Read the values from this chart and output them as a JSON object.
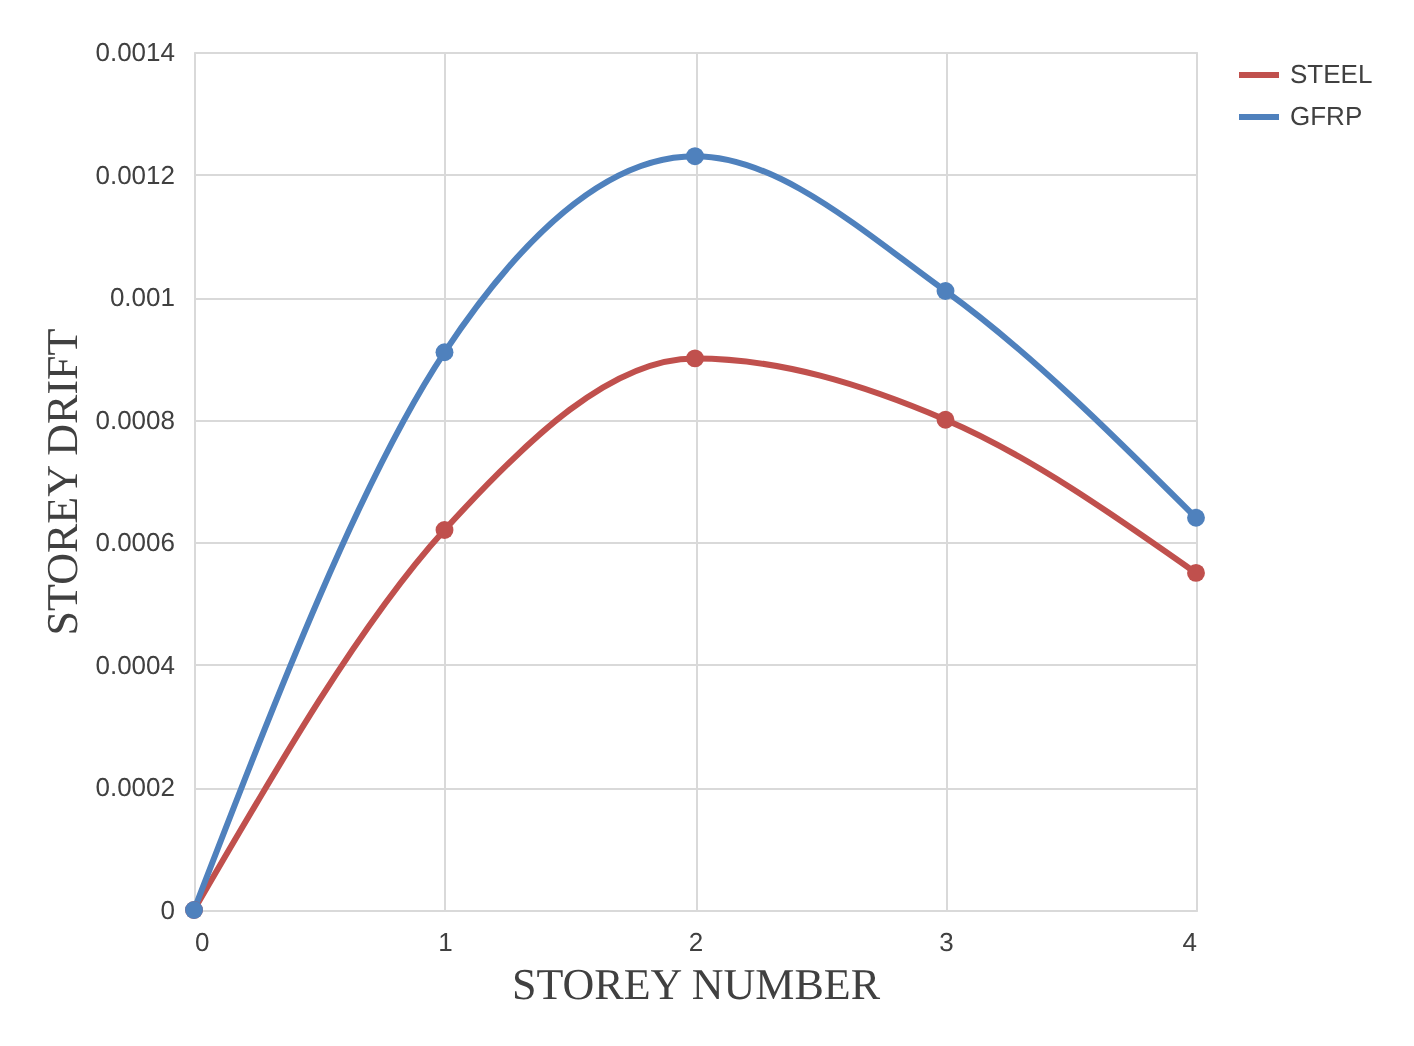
{
  "chart_data": {
    "type": "line",
    "xlabel": "STOREY NUMBER",
    "ylabel": "STOREY DRIFT",
    "x": [
      0,
      1,
      2,
      3,
      4
    ],
    "series": [
      {
        "name": "STEEL",
        "color": "#c0504d",
        "values": [
          0,
          0.00062,
          0.0009,
          0.0008,
          0.00055
        ]
      },
      {
        "name": "GFRP",
        "color": "#4f81bd",
        "values": [
          0,
          0.00091,
          0.00123,
          0.00101,
          0.00064
        ]
      }
    ],
    "xlim": [
      0,
      4
    ],
    "xticks": [
      0,
      1,
      2,
      3,
      4
    ],
    "ylim": [
      0,
      0.0014
    ],
    "yticks": [
      0,
      0.0002,
      0.0004,
      0.0006,
      0.0008,
      0.001,
      0.0012,
      0.0014
    ],
    "grid": true,
    "legend": "right",
    "marker": "circle",
    "line_style": "solid"
  }
}
